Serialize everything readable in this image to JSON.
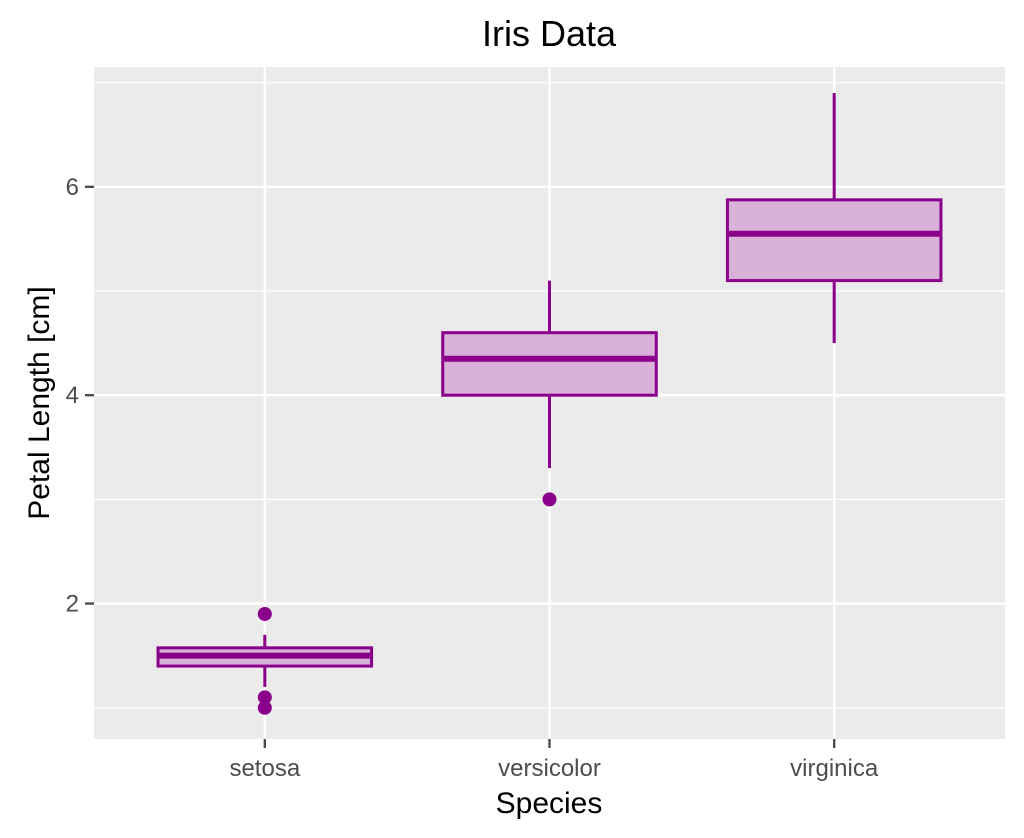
{
  "chart_data": {
    "type": "boxplot",
    "title": "Iris Data",
    "xlabel": "Species",
    "ylabel": "Petal Length [cm]",
    "categories": [
      "setosa",
      "versicolor",
      "virginica"
    ],
    "ylim": [
      0.7,
      7.15
    ],
    "yticks": [
      2,
      4,
      6
    ],
    "ytick_labels": [
      "2",
      "4",
      "6"
    ],
    "minor_yticks": [
      1,
      3,
      5,
      7
    ],
    "grid": true,
    "boxes": [
      {
        "name": "setosa",
        "whisker_low": 1.2,
        "q1": 1.4,
        "median": 1.5,
        "q3": 1.575,
        "whisker_high": 1.7,
        "outliers": [
          1.0,
          1.1,
          1.9
        ]
      },
      {
        "name": "versicolor",
        "whisker_low": 3.3,
        "q1": 4.0,
        "median": 4.35,
        "q3": 4.6,
        "whisker_high": 5.1,
        "outliers": [
          3.0
        ]
      },
      {
        "name": "virginica",
        "whisker_low": 4.5,
        "q1": 5.1,
        "median": 5.55,
        "q3": 5.875,
        "whisker_high": 6.9,
        "outliers": []
      }
    ],
    "colors": {
      "stroke": "#8b008b",
      "fill": "#d8b2d8",
      "panel": "#ebebeb",
      "grid": "#ffffff",
      "tick": "#4d4d4d"
    }
  }
}
